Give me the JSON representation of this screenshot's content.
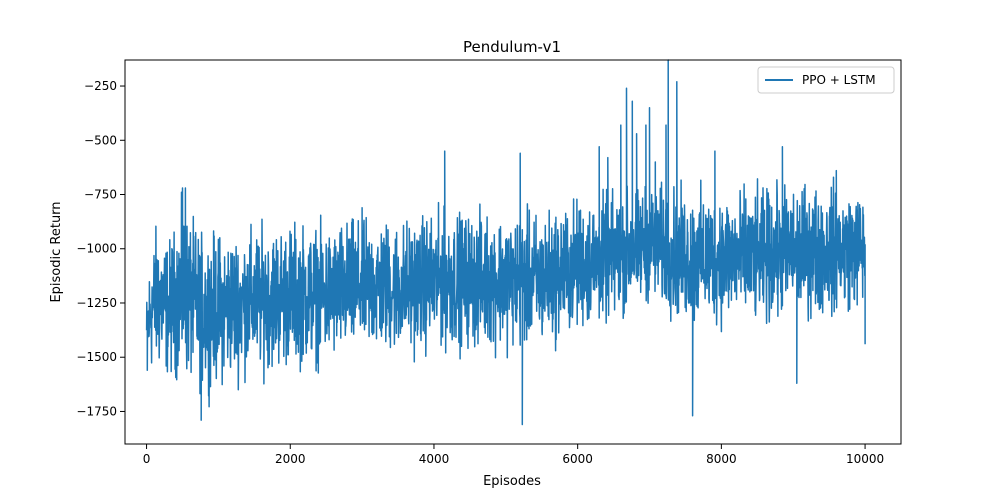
{
  "chart_data": {
    "type": "line",
    "title": "Pendulum-v1",
    "xlabel": "Episodes",
    "ylabel": "Episodic Return",
    "xlim": [
      -300,
      10500
    ],
    "ylim": [
      -1900,
      -130
    ],
    "xticks": [
      0,
      2000,
      4000,
      6000,
      8000,
      10000
    ],
    "xtick_labels": [
      "0",
      "2000",
      "4000",
      "6000",
      "8000",
      "10000"
    ],
    "yticks": [
      -1750,
      -1500,
      -1250,
      -1000,
      -750,
      -500,
      -250
    ],
    "ytick_labels": [
      "−1750",
      "−1500",
      "−1250",
      "−1000",
      "−750",
      "−500",
      "−250"
    ],
    "grid": false,
    "legend_position": "top-right",
    "series": [
      {
        "name": "PPO + LSTM",
        "color": "#1f77b4",
        "x_range": [
          0,
          10000
        ],
        "trend": [
          {
            "x": 0,
            "upper": -1180,
            "lower": -1600
          },
          {
            "x": 50,
            "upper": -950,
            "lower": -1640
          },
          {
            "x": 150,
            "upper": -790,
            "lower": -1650
          },
          {
            "x": 300,
            "upper": -900,
            "lower": -1660
          },
          {
            "x": 500,
            "upper": -720,
            "lower": -1680
          },
          {
            "x": 750,
            "upper": -850,
            "lower": -1720
          },
          {
            "x": 1000,
            "upper": -850,
            "lower": -1700
          },
          {
            "x": 1500,
            "upper": -830,
            "lower": -1650
          },
          {
            "x": 2000,
            "upper": -800,
            "lower": -1620
          },
          {
            "x": 2500,
            "upper": -830,
            "lower": -1600
          },
          {
            "x": 3000,
            "upper": -780,
            "lower": -1560
          },
          {
            "x": 3500,
            "upper": -800,
            "lower": -1560
          },
          {
            "x": 4000,
            "upper": -760,
            "lower": -1540
          },
          {
            "x": 4500,
            "upper": -760,
            "lower": -1530
          },
          {
            "x": 5000,
            "upper": -760,
            "lower": -1530
          },
          {
            "x": 5500,
            "upper": -760,
            "lower": -1530
          },
          {
            "x": 6000,
            "upper": -700,
            "lower": -1450
          },
          {
            "x": 6500,
            "upper": -680,
            "lower": -1400
          },
          {
            "x": 7000,
            "upper": -640,
            "lower": -1300
          },
          {
            "x": 7500,
            "upper": -660,
            "lower": -1430
          },
          {
            "x": 8000,
            "upper": -650,
            "lower": -1420
          },
          {
            "x": 8500,
            "upper": -660,
            "lower": -1430
          },
          {
            "x": 9000,
            "upper": -640,
            "lower": -1380
          },
          {
            "x": 9500,
            "upper": -630,
            "lower": -1380
          },
          {
            "x": 10000,
            "upper": -680,
            "lower": -1320
          }
        ],
        "extremes": [
          {
            "x": 10,
            "y": -1560
          },
          {
            "x": 500,
            "y": -720
          },
          {
            "x": 540,
            "y": -720
          },
          {
            "x": 760,
            "y": -1790
          },
          {
            "x": 4150,
            "y": -550
          },
          {
            "x": 5200,
            "y": -560
          },
          {
            "x": 5230,
            "y": -1810
          },
          {
            "x": 6300,
            "y": -530
          },
          {
            "x": 6420,
            "y": -580
          },
          {
            "x": 6600,
            "y": -430
          },
          {
            "x": 6680,
            "y": -260
          },
          {
            "x": 6760,
            "y": -320
          },
          {
            "x": 6820,
            "y": -470
          },
          {
            "x": 6950,
            "y": -430
          },
          {
            "x": 7000,
            "y": -350
          },
          {
            "x": 7080,
            "y": -600
          },
          {
            "x": 7230,
            "y": -430
          },
          {
            "x": 7260,
            "y": -130
          },
          {
            "x": 7380,
            "y": -230
          },
          {
            "x": 7600,
            "y": -1770
          },
          {
            "x": 7910,
            "y": -550
          },
          {
            "x": 8850,
            "y": -530
          },
          {
            "x": 9050,
            "y": -1620
          },
          {
            "x": 9600,
            "y": -640
          },
          {
            "x": 10000,
            "y": -1440
          }
        ]
      }
    ]
  }
}
